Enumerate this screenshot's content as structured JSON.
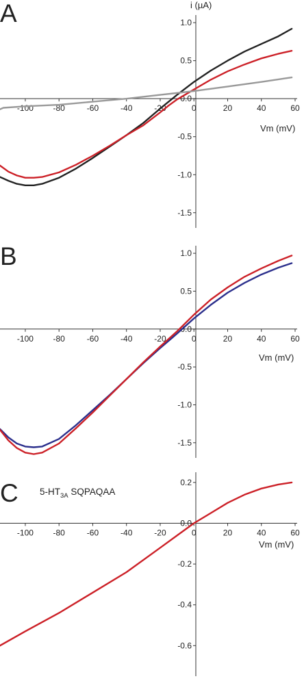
{
  "chart_data": [
    {
      "type": "line",
      "panel": "A",
      "ylabel": "i (µA)",
      "xlabel": "Vm (mV)",
      "xlim": [
        -115,
        60
      ],
      "ylim": [
        -1.7,
        1.1
      ],
      "x_ticks": [
        -100,
        -80,
        -60,
        -40,
        -20,
        0,
        20,
        40,
        60
      ],
      "y_ticks": [
        -1.5,
        -1.0,
        -0.5,
        0.0,
        0.5,
        1.0
      ],
      "x_tick_labels": [
        "-100",
        "-80",
        "-60",
        "-40",
        "-20",
        "0",
        "20",
        "40",
        "60"
      ],
      "y_tick_labels": [
        "-1.5",
        "-1.0",
        "-0.5",
        "0.0",
        "0.5",
        "1.0"
      ],
      "series": [
        {
          "color": "#222222",
          "x": [
            -115,
            -110,
            -105,
            -100,
            -95,
            -90,
            -80,
            -70,
            -60,
            -50,
            -40,
            -30,
            -20,
            -15,
            -10,
            0,
            10,
            20,
            30,
            40,
            50,
            58
          ],
          "y": [
            -1.03,
            -1.08,
            -1.12,
            -1.14,
            -1.14,
            -1.12,
            -1.04,
            -0.92,
            -0.78,
            -0.63,
            -0.48,
            -0.32,
            -0.13,
            -0.04,
            0.05,
            0.22,
            0.37,
            0.5,
            0.62,
            0.72,
            0.82,
            0.92
          ]
        },
        {
          "color": "#cc2027",
          "x": [
            -115,
            -110,
            -105,
            -100,
            -95,
            -90,
            -80,
            -70,
            -60,
            -50,
            -40,
            -30,
            -20,
            -15,
            -10,
            0,
            10,
            20,
            30,
            40,
            50,
            58
          ],
          "y": [
            -0.88,
            -0.96,
            -1.01,
            -1.04,
            -1.04,
            -1.03,
            -0.97,
            -0.87,
            -0.75,
            -0.62,
            -0.48,
            -0.35,
            -0.18,
            -0.09,
            -0.01,
            0.12,
            0.25,
            0.36,
            0.45,
            0.53,
            0.59,
            0.63
          ]
        },
        {
          "color": "#999999",
          "x": [
            -115,
            -113,
            -100,
            -80,
            -60,
            -40,
            -20,
            0,
            20,
            40,
            58
          ],
          "y": [
            -0.14,
            -0.12,
            -0.1,
            -0.08,
            -0.04,
            0.0,
            0.05,
            0.1,
            0.16,
            0.22,
            0.28
          ]
        }
      ]
    },
    {
      "type": "line",
      "panel": "B",
      "xlabel": "Vm (mV)",
      "xlim": [
        -115,
        60
      ],
      "ylim": [
        -1.7,
        1.1
      ],
      "x_ticks": [
        -100,
        -80,
        -60,
        -40,
        -20,
        0,
        20,
        40,
        60
      ],
      "y_ticks": [
        -1.5,
        -1.0,
        -0.5,
        0.0,
        0.5,
        1.0
      ],
      "x_tick_labels": [
        "-100",
        "-80",
        "-60",
        "-40",
        "-20",
        "0",
        "20",
        "40",
        "60"
      ],
      "y_tick_labels": [
        "-1.5",
        "-1.0",
        "-0.5",
        "0.0",
        "0.5",
        "1.0"
      ],
      "series": [
        {
          "color": "#2b2f8c",
          "x": [
            -115,
            -110,
            -105,
            -100,
            -95,
            -90,
            -80,
            -70,
            -60,
            -50,
            -40,
            -30,
            -20,
            -10,
            0,
            10,
            20,
            30,
            40,
            50,
            58
          ],
          "y": [
            -1.32,
            -1.43,
            -1.51,
            -1.55,
            -1.56,
            -1.55,
            -1.45,
            -1.27,
            -1.07,
            -0.87,
            -0.66,
            -0.45,
            -0.25,
            -0.06,
            0.14,
            0.32,
            0.48,
            0.61,
            0.72,
            0.81,
            0.87
          ]
        },
        {
          "color": "#cc2027",
          "x": [
            -115,
            -110,
            -105,
            -100,
            -95,
            -90,
            -80,
            -70,
            -60,
            -50,
            -40,
            -30,
            -20,
            -10,
            0,
            10,
            20,
            30,
            40,
            50,
            58
          ],
          "y": [
            -1.33,
            -1.47,
            -1.57,
            -1.63,
            -1.65,
            -1.63,
            -1.51,
            -1.31,
            -1.1,
            -0.88,
            -0.66,
            -0.44,
            -0.23,
            -0.03,
            0.19,
            0.39,
            0.55,
            0.69,
            0.8,
            0.9,
            0.97
          ]
        }
      ]
    },
    {
      "type": "line",
      "panel": "C",
      "annotation_main": "5-HT",
      "annotation_sub": "3A",
      "annotation_rest": " SQPAQAA",
      "xlabel": "Vm (mV)",
      "xlim": [
        -115,
        60
      ],
      "ylim": [
        -0.75,
        0.25
      ],
      "x_ticks": [
        -100,
        -80,
        -60,
        -40,
        -20,
        0,
        20,
        40,
        60
      ],
      "y_ticks": [
        -0.6,
        -0.4,
        -0.2,
        0.0,
        0.2
      ],
      "x_tick_labels": [
        "-100",
        "-80",
        "-60",
        "-40",
        "-20",
        "0",
        "20",
        "40",
        "60"
      ],
      "y_tick_labels": [
        "-0.6",
        "-0.4",
        "-0.2",
        "0.0",
        "0.2"
      ],
      "series": [
        {
          "color": "#cc2027",
          "x": [
            -115,
            -100,
            -80,
            -60,
            -40,
            -20,
            -10,
            0,
            10,
            20,
            30,
            40,
            50,
            58
          ],
          "y": [
            -0.6,
            -0.53,
            -0.44,
            -0.34,
            -0.24,
            -0.12,
            -0.06,
            0.0,
            0.05,
            0.1,
            0.14,
            0.17,
            0.19,
            0.2
          ]
        }
      ]
    }
  ]
}
